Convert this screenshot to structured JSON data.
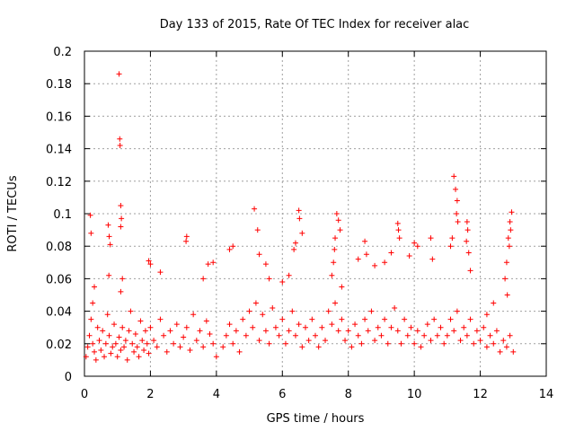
{
  "chart_data": {
    "type": "scatter",
    "title": "Day 133 of 2015, Rate Of TEC Index for receiver alac",
    "xlabel": "GPS time / hours",
    "ylabel": "ROTI / TECUs",
    "xlim": [
      0,
      14
    ],
    "ylim": [
      0,
      0.2
    ],
    "xticks": [
      0,
      2,
      4,
      6,
      8,
      10,
      12,
      14
    ],
    "yticks": [
      0,
      0.02,
      0.04,
      0.06,
      0.08,
      0.1,
      0.12,
      0.14,
      0.16,
      0.18,
      0.2
    ],
    "xtick_labels": [
      "0",
      "2",
      "4",
      "6",
      "8",
      "10",
      "12",
      "14"
    ],
    "ytick_labels": [
      "0",
      "0.02",
      "0.04",
      "0.06",
      "0.08",
      "0.1",
      "0.12",
      "0.14",
      "0.16",
      "0.18",
      "0.2"
    ],
    "grid": true,
    "marker": "+",
    "color": "#ff0000",
    "series": [
      {
        "name": "ROTI",
        "points": [
          [
            0.05,
            0.012
          ],
          [
            0.1,
            0.018
          ],
          [
            0.15,
            0.025
          ],
          [
            0.2,
            0.035
          ],
          [
            0.25,
            0.02
          ],
          [
            0.3,
            0.015
          ],
          [
            0.35,
            0.01
          ],
          [
            0.4,
            0.03
          ],
          [
            0.45,
            0.022
          ],
          [
            0.5,
            0.016
          ],
          [
            0.55,
            0.028
          ],
          [
            0.6,
            0.012
          ],
          [
            0.65,
            0.02
          ],
          [
            0.7,
            0.038
          ],
          [
            0.75,
            0.025
          ],
          [
            0.8,
            0.014
          ],
          [
            0.85,
            0.018
          ],
          [
            0.9,
            0.032
          ],
          [
            0.95,
            0.02
          ],
          [
            1.0,
            0.012
          ],
          [
            1.05,
            0.024
          ],
          [
            1.1,
            0.016
          ],
          [
            1.15,
            0.03
          ],
          [
            1.2,
            0.018
          ],
          [
            1.25,
            0.022
          ],
          [
            1.3,
            0.01
          ],
          [
            1.35,
            0.028
          ],
          [
            1.4,
            0.04
          ],
          [
            1.45,
            0.02
          ],
          [
            1.5,
            0.015
          ],
          [
            1.55,
            0.026
          ],
          [
            1.6,
            0.018
          ],
          [
            1.65,
            0.012
          ],
          [
            1.7,
            0.034
          ],
          [
            1.75,
            0.022
          ],
          [
            1.8,
            0.016
          ],
          [
            1.85,
            0.028
          ],
          [
            1.9,
            0.02
          ],
          [
            1.95,
            0.014
          ],
          [
            2.0,
            0.03
          ],
          [
            2.1,
            0.022
          ],
          [
            2.2,
            0.018
          ],
          [
            2.3,
            0.035
          ],
          [
            2.4,
            0.025
          ],
          [
            2.5,
            0.015
          ],
          [
            2.6,
            0.028
          ],
          [
            2.7,
            0.02
          ],
          [
            2.8,
            0.032
          ],
          [
            2.9,
            0.018
          ],
          [
            3.0,
            0.024
          ],
          [
            3.1,
            0.03
          ],
          [
            3.2,
            0.016
          ],
          [
            3.3,
            0.038
          ],
          [
            3.4,
            0.022
          ],
          [
            3.5,
            0.028
          ],
          [
            3.6,
            0.018
          ],
          [
            3.7,
            0.034
          ],
          [
            3.8,
            0.026
          ],
          [
            3.9,
            0.02
          ],
          [
            4.0,
            0.012
          ],
          [
            4.2,
            0.018
          ],
          [
            4.3,
            0.025
          ],
          [
            4.4,
            0.032
          ],
          [
            4.5,
            0.02
          ],
          [
            4.6,
            0.028
          ],
          [
            4.7,
            0.015
          ],
          [
            4.8,
            0.035
          ],
          [
            4.9,
            0.025
          ],
          [
            5.0,
            0.04
          ],
          [
            5.1,
            0.03
          ],
          [
            5.2,
            0.045
          ],
          [
            5.3,
            0.022
          ],
          [
            5.4,
            0.038
          ],
          [
            5.5,
            0.028
          ],
          [
            5.6,
            0.02
          ],
          [
            5.7,
            0.042
          ],
          [
            5.8,
            0.03
          ],
          [
            5.9,
            0.025
          ],
          [
            6.0,
            0.035
          ],
          [
            6.1,
            0.02
          ],
          [
            6.2,
            0.028
          ],
          [
            6.3,
            0.04
          ],
          [
            6.4,
            0.025
          ],
          [
            6.5,
            0.032
          ],
          [
            6.6,
            0.018
          ],
          [
            6.7,
            0.03
          ],
          [
            6.8,
            0.022
          ],
          [
            6.9,
            0.035
          ],
          [
            7.0,
            0.025
          ],
          [
            7.1,
            0.018
          ],
          [
            7.2,
            0.03
          ],
          [
            7.3,
            0.022
          ],
          [
            7.4,
            0.04
          ],
          [
            7.5,
            0.032
          ],
          [
            7.6,
            0.045
          ],
          [
            7.7,
            0.028
          ],
          [
            7.8,
            0.035
          ],
          [
            7.9,
            0.022
          ],
          [
            8.0,
            0.028
          ],
          [
            8.1,
            0.018
          ],
          [
            8.2,
            0.032
          ],
          [
            8.3,
            0.025
          ],
          [
            8.4,
            0.02
          ],
          [
            8.5,
            0.035
          ],
          [
            8.6,
            0.028
          ],
          [
            8.7,
            0.04
          ],
          [
            8.8,
            0.022
          ],
          [
            8.9,
            0.03
          ],
          [
            9.0,
            0.025
          ],
          [
            9.1,
            0.035
          ],
          [
            9.2,
            0.02
          ],
          [
            9.3,
            0.03
          ],
          [
            9.4,
            0.042
          ],
          [
            9.5,
            0.028
          ],
          [
            9.6,
            0.02
          ],
          [
            9.7,
            0.035
          ],
          [
            9.8,
            0.025
          ],
          [
            9.9,
            0.03
          ],
          [
            10.0,
            0.02
          ],
          [
            10.1,
            0.028
          ],
          [
            10.2,
            0.018
          ],
          [
            10.3,
            0.025
          ],
          [
            10.4,
            0.032
          ],
          [
            10.5,
            0.022
          ],
          [
            10.6,
            0.035
          ],
          [
            10.7,
            0.025
          ],
          [
            10.8,
            0.03
          ],
          [
            10.9,
            0.02
          ],
          [
            11.0,
            0.025
          ],
          [
            11.1,
            0.035
          ],
          [
            11.2,
            0.028
          ],
          [
            11.3,
            0.04
          ],
          [
            11.4,
            0.022
          ],
          [
            11.5,
            0.03
          ],
          [
            11.6,
            0.025
          ],
          [
            11.7,
            0.035
          ],
          [
            11.8,
            0.02
          ],
          [
            11.9,
            0.028
          ],
          [
            12.0,
            0.022
          ],
          [
            12.1,
            0.03
          ],
          [
            12.2,
            0.018
          ],
          [
            12.3,
            0.025
          ],
          [
            12.4,
            0.02
          ],
          [
            12.5,
            0.028
          ],
          [
            12.6,
            0.015
          ],
          [
            12.7,
            0.022
          ],
          [
            12.8,
            0.018
          ],
          [
            12.9,
            0.025
          ],
          [
            13.0,
            0.015
          ],
          [
            1.05,
            0.186
          ],
          [
            1.07,
            0.146
          ],
          [
            1.08,
            0.142
          ],
          [
            1.1,
            0.105
          ],
          [
            1.12,
            0.097
          ],
          [
            1.1,
            0.092
          ],
          [
            0.18,
            0.099
          ],
          [
            0.2,
            0.088
          ],
          [
            0.72,
            0.093
          ],
          [
            0.75,
            0.086
          ],
          [
            0.78,
            0.081
          ],
          [
            0.74,
            0.062
          ],
          [
            1.15,
            0.06
          ],
          [
            1.1,
            0.052
          ],
          [
            0.3,
            0.055
          ],
          [
            0.25,
            0.045
          ],
          [
            1.95,
            0.071
          ],
          [
            2.0,
            0.069
          ],
          [
            2.3,
            0.064
          ],
          [
            3.1,
            0.086
          ],
          [
            3.08,
            0.083
          ],
          [
            3.6,
            0.06
          ],
          [
            3.75,
            0.069
          ],
          [
            3.9,
            0.07
          ],
          [
            4.4,
            0.078
          ],
          [
            4.5,
            0.08
          ],
          [
            5.15,
            0.103
          ],
          [
            5.25,
            0.09
          ],
          [
            5.3,
            0.075
          ],
          [
            5.5,
            0.069
          ],
          [
            5.6,
            0.06
          ],
          [
            6.5,
            0.102
          ],
          [
            6.52,
            0.097
          ],
          [
            6.6,
            0.088
          ],
          [
            6.4,
            0.082
          ],
          [
            6.35,
            0.078
          ],
          [
            6.2,
            0.062
          ],
          [
            6.0,
            0.058
          ],
          [
            7.65,
            0.1
          ],
          [
            7.7,
            0.096
          ],
          [
            7.75,
            0.09
          ],
          [
            7.6,
            0.085
          ],
          [
            7.58,
            0.078
          ],
          [
            7.55,
            0.07
          ],
          [
            7.5,
            0.062
          ],
          [
            7.8,
            0.055
          ],
          [
            8.3,
            0.072
          ],
          [
            8.5,
            0.083
          ],
          [
            8.55,
            0.075
          ],
          [
            8.8,
            0.068
          ],
          [
            9.1,
            0.07
          ],
          [
            9.3,
            0.076
          ],
          [
            9.5,
            0.094
          ],
          [
            9.52,
            0.09
          ],
          [
            9.55,
            0.085
          ],
          [
            9.85,
            0.074
          ],
          [
            10.0,
            0.082
          ],
          [
            10.1,
            0.08
          ],
          [
            10.5,
            0.085
          ],
          [
            10.55,
            0.072
          ],
          [
            11.2,
            0.123
          ],
          [
            11.25,
            0.115
          ],
          [
            11.3,
            0.108
          ],
          [
            11.28,
            0.1
          ],
          [
            11.32,
            0.095
          ],
          [
            11.15,
            0.085
          ],
          [
            11.1,
            0.08
          ],
          [
            11.6,
            0.095
          ],
          [
            11.62,
            0.09
          ],
          [
            11.58,
            0.083
          ],
          [
            11.65,
            0.076
          ],
          [
            11.7,
            0.065
          ],
          [
            12.95,
            0.101
          ],
          [
            12.9,
            0.095
          ],
          [
            12.92,
            0.09
          ],
          [
            12.85,
            0.085
          ],
          [
            12.88,
            0.08
          ],
          [
            12.8,
            0.07
          ],
          [
            12.75,
            0.06
          ],
          [
            12.82,
            0.05
          ],
          [
            12.4,
            0.045
          ],
          [
            12.2,
            0.038
          ]
        ]
      }
    ]
  }
}
